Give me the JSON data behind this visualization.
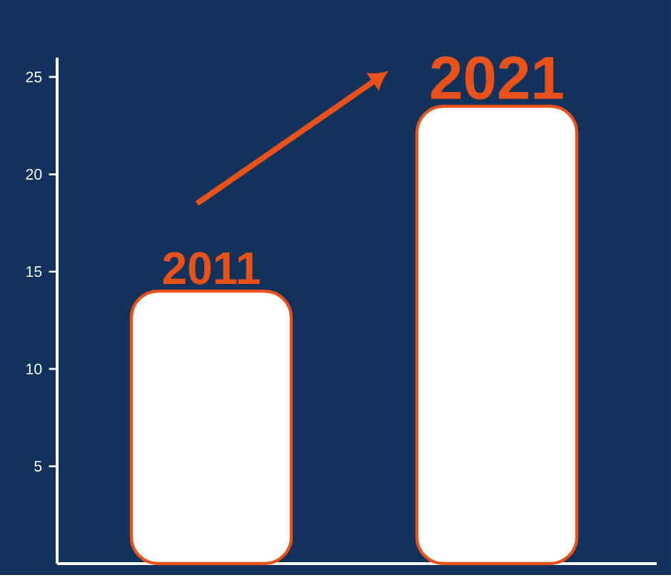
{
  "chart_data": {
    "type": "bar",
    "categories": [
      "2011",
      "2021"
    ],
    "values": [
      14,
      23.5
    ],
    "color": "#ffffff",
    "ylim": [
      0,
      26
    ],
    "yticks": [
      5,
      10,
      15,
      20,
      25
    ],
    "tick_labels": "y"
  }
}
